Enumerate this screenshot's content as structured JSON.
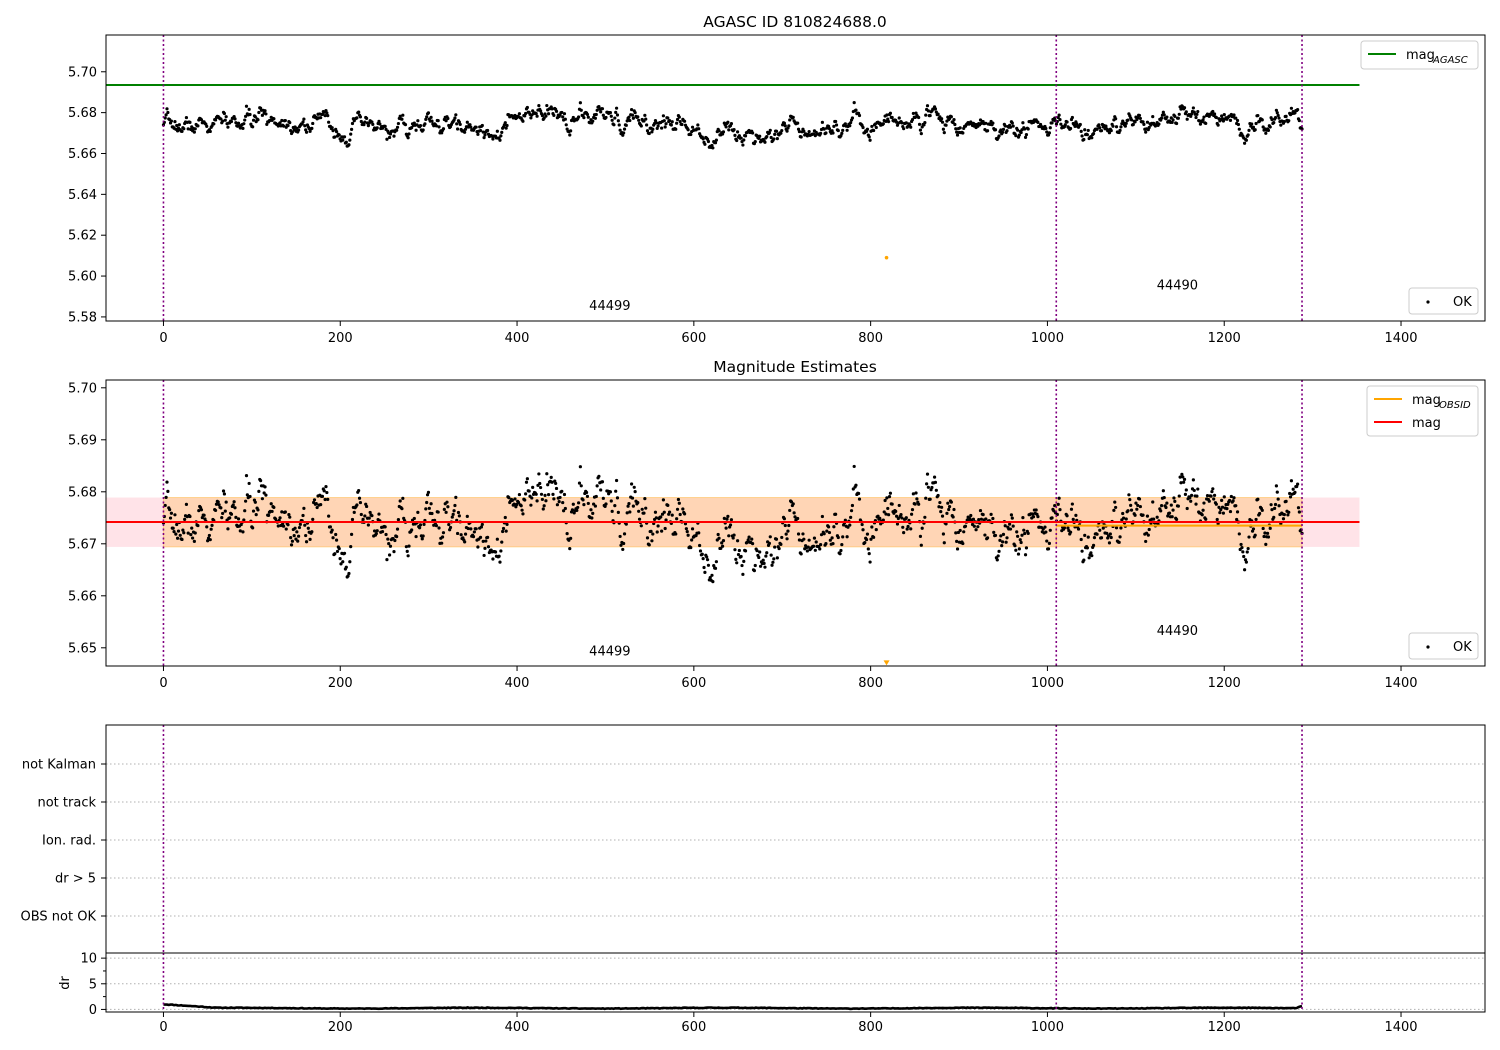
{
  "chart_data": [
    {
      "type": "scatter",
      "title": "AGASC ID 810824688.0",
      "xlim": [
        -65,
        1495
      ],
      "ylim": [
        5.578,
        5.718
      ],
      "xticks": [
        "0",
        "200",
        "400",
        "600",
        "800",
        "1000",
        "1200",
        "1400"
      ],
      "yticks": [
        "5.58",
        "5.60",
        "5.62",
        "5.64",
        "5.66",
        "5.68",
        "5.70"
      ],
      "ytick_values": [
        5.58,
        5.6,
        5.62,
        5.64,
        5.66,
        5.68,
        5.7
      ],
      "vlines": [
        0,
        1010,
        1288
      ],
      "obsid_labels": [
        {
          "text": "44499",
          "x": 505,
          "y": 5.5835
        },
        {
          "text": "44490",
          "x": 1147,
          "y": 5.5935
        }
      ],
      "hline": {
        "label": "mag",
        "label_sub": "AGASC",
        "y": 5.6935,
        "x_range": [
          -65,
          1353
        ],
        "color": "#008000"
      },
      "ok_series": {
        "name": "OK",
        "x_range": [
          0,
          1288
        ],
        "n_points": 1290,
        "mean": 5.6741,
        "noise_sd": 0.0033,
        "seed": 7,
        "color": "#000000"
      },
      "outliers": [
        {
          "x": 818,
          "y": 5.609,
          "color": "#ffa500"
        }
      ],
      "legend": {
        "upper": "top-right",
        "lower": "bottom-right"
      }
    },
    {
      "type": "scatter",
      "title": "Magnitude Estimates",
      "xlim": [
        -65,
        1495
      ],
      "ylim": [
        5.6465,
        5.7015
      ],
      "xticks": [
        "0",
        "200",
        "400",
        "600",
        "800",
        "1000",
        "1200",
        "1400"
      ],
      "yticks": [
        "5.65",
        "5.66",
        "5.67",
        "5.68",
        "5.69",
        "5.70"
      ],
      "ytick_values": [
        5.65,
        5.66,
        5.67,
        5.68,
        5.69,
        5.7
      ],
      "vlines": [
        0,
        1010,
        1288
      ],
      "obsid_labels": [
        {
          "text": "44499",
          "x": 505,
          "y": 5.6485
        },
        {
          "text": "44490",
          "x": 1147,
          "y": 5.6525
        }
      ],
      "mag": {
        "label": "mag",
        "y": 5.6742,
        "band": [
          5.6694,
          5.6789
        ],
        "x_range": [
          -65,
          1353
        ],
        "color": "#ff0000",
        "band_color": "#ffc0cb"
      },
      "mag_obsid": {
        "label": "mag",
        "label_sub": "OBSID",
        "color": "#ffa500",
        "segments": [
          {
            "x_range": [
              0,
              1010
            ],
            "y": 5.6742,
            "band": [
              5.6694,
              5.6789
            ]
          },
          {
            "x_range": [
              1010,
              1288
            ],
            "y": 5.6735,
            "band": [
              5.6694,
              5.6789
            ]
          }
        ]
      },
      "ok_series": {
        "name": "OK"
      },
      "outliers": [
        {
          "x": 818,
          "y": 5.6472,
          "color": "#ffa500",
          "marker": "triangle-down"
        }
      ],
      "legend": {
        "upper": "top-right",
        "lower": "bottom-right"
      }
    },
    {
      "type": "table",
      "flags": [
        "not Kalman",
        "not track",
        "Ion. rad.",
        "dr > 5",
        "OBS not OK"
      ],
      "xlim": [
        -65,
        1495
      ],
      "vlines": [
        0,
        1010,
        1288
      ]
    },
    {
      "type": "line",
      "ylabel": "dr",
      "xlim": [
        -65,
        1495
      ],
      "ylim": [
        -0.5,
        11
      ],
      "xticks": [
        "0",
        "200",
        "400",
        "600",
        "800",
        "1000",
        "1200",
        "1400"
      ],
      "yticks": [
        "0",
        "5",
        "10"
      ],
      "ytick_values": [
        0,
        5,
        10
      ],
      "vlines": [
        0,
        1010,
        1288
      ],
      "dr_series": {
        "x_range": [
          0,
          1288
        ],
        "start": 1.0,
        "base": 0.25,
        "noise": 0.12
      }
    }
  ],
  "colors": {
    "vline": "#800080",
    "grid": "#b0b0b0"
  }
}
